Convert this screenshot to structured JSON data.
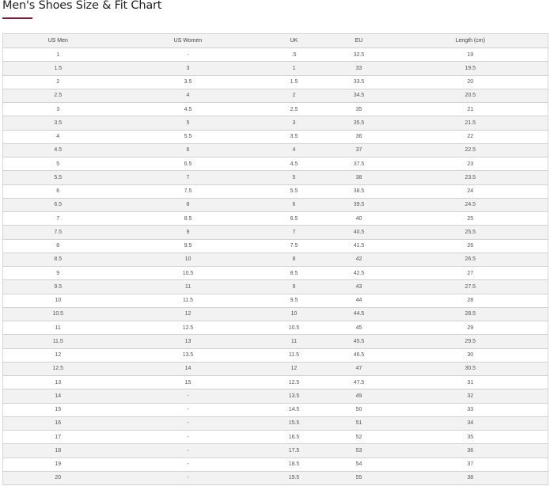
{
  "page": {
    "title": "Men's Shoes Size & Fit Chart",
    "accent_color": "#8b1a3a"
  },
  "table": {
    "headers": [
      "US Men",
      "US Women",
      "UK",
      "EU",
      "Length (cm)"
    ],
    "rows": [
      [
        "1",
        "-",
        ".5",
        "32.5",
        "19"
      ],
      [
        "1.5",
        "3",
        "1",
        "33",
        "19.5"
      ],
      [
        "2",
        "3.5",
        "1.5",
        "33.5",
        "20"
      ],
      [
        "2.5",
        "4",
        "2",
        "34.5",
        "20.5"
      ],
      [
        "3",
        "4.5",
        "2.5",
        "35",
        "21"
      ],
      [
        "3.5",
        "5",
        "3",
        "35.5",
        "21.5"
      ],
      [
        "4",
        "5.5",
        "3.5",
        "36",
        "22"
      ],
      [
        "4.5",
        "6",
        "4",
        "37",
        "22.5"
      ],
      [
        "5",
        "6.5",
        "4.5",
        "37.5",
        "23"
      ],
      [
        "5.5",
        "7",
        "5",
        "38",
        "23.5"
      ],
      [
        "6",
        "7.5",
        "5.5",
        "38.5",
        "24"
      ],
      [
        "6.5",
        "8",
        "6",
        "39.5",
        "24.5"
      ],
      [
        "7",
        "8.5",
        "6.5",
        "40",
        "25"
      ],
      [
        "7.5",
        "9",
        "7",
        "40.5",
        "25.5"
      ],
      [
        "8",
        "9.5",
        "7.5",
        "41.5",
        "26"
      ],
      [
        "8.5",
        "10",
        "8",
        "42",
        "26.5"
      ],
      [
        "9",
        "10.5",
        "8.5",
        "42.5",
        "27"
      ],
      [
        "9.5",
        "11",
        "9",
        "43",
        "27.5"
      ],
      [
        "10",
        "11.5",
        "9.5",
        "44",
        "28"
      ],
      [
        "10.5",
        "12",
        "10",
        "44.5",
        "28.5"
      ],
      [
        "11",
        "12.5",
        "10.5",
        "45",
        "29"
      ],
      [
        "11.5",
        "13",
        "11",
        "45.5",
        "29.5"
      ],
      [
        "12",
        "13.5",
        "11.5",
        "46.5",
        "30"
      ],
      [
        "12.5",
        "14",
        "12",
        "47",
        "30.5"
      ],
      [
        "13",
        "15",
        "12.5",
        "47.5",
        "31"
      ],
      [
        "14",
        "-",
        "13.5",
        "49",
        "32"
      ],
      [
        "15",
        "-",
        "14.5",
        "50",
        "33"
      ],
      [
        "16",
        "-",
        "15.5",
        "51",
        "34"
      ],
      [
        "17",
        "-",
        "16.5",
        "52",
        "35"
      ],
      [
        "18",
        "-",
        "17.5",
        "53",
        "36"
      ],
      [
        "19",
        "-",
        "18.5",
        "54",
        "37"
      ],
      [
        "20",
        "-",
        "19.5",
        "55",
        "38"
      ]
    ]
  }
}
